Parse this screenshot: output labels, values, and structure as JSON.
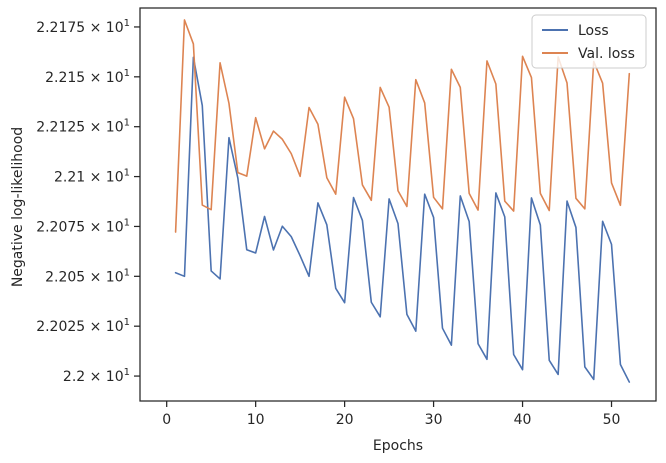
{
  "chart_data": {
    "type": "line",
    "title": "",
    "xlabel": "Epochs",
    "ylabel": "Negative log-likelihood",
    "xlim": [
      -3,
      55
    ],
    "ylim": [
      21.9875,
      22.1845
    ],
    "x_ticks": [
      0,
      10,
      20,
      30,
      40,
      50
    ],
    "y_ticks": [
      {
        "value": 22.0,
        "label": "2.2 × 10^1"
      },
      {
        "value": 22.025,
        "label": "2.2025 × 10^1"
      },
      {
        "value": 22.05,
        "label": "2.205 × 10^1"
      },
      {
        "value": 22.075,
        "label": "2.2075 × 10^1"
      },
      {
        "value": 22.1,
        "label": "2.21 × 10^1"
      },
      {
        "value": 22.125,
        "label": "2.2125 × 10^1"
      },
      {
        "value": 22.15,
        "label": "2.215 × 10^1"
      },
      {
        "value": 22.175,
        "label": "2.2175 × 10^1"
      }
    ],
    "grid": false,
    "legend_position": "top-right",
    "x": [
      1,
      2,
      3,
      4,
      5,
      6,
      7,
      8,
      9,
      10,
      11,
      12,
      13,
      14,
      15,
      16,
      17,
      18,
      19,
      20,
      21,
      22,
      23,
      24,
      25,
      26,
      27,
      28,
      29,
      30,
      31,
      32,
      33,
      34,
      35,
      36,
      37,
      38,
      39,
      40,
      41,
      42,
      43,
      44,
      45,
      46,
      47,
      48,
      49,
      50,
      51,
      52
    ],
    "series": [
      {
        "name": "Loss",
        "color": "#4c72b0",
        "values": [
          22.0518,
          22.05,
          22.1598,
          22.1356,
          22.0527,
          22.0487,
          22.1195,
          22.0992,
          22.0633,
          22.0617,
          22.08,
          22.0632,
          22.0751,
          22.0699,
          22.0603,
          22.05,
          22.0868,
          22.0758,
          22.044,
          22.0368,
          22.0895,
          22.078,
          22.037,
          22.0297,
          22.0888,
          22.0764,
          22.0309,
          22.0225,
          22.0912,
          22.0795,
          22.024,
          22.0155,
          22.0903,
          22.0775,
          22.0162,
          22.0084,
          22.0918,
          22.0798,
          22.0108,
          22.0032,
          22.0893,
          22.0757,
          22.0079,
          22.0008,
          22.0877,
          22.0745,
          22.0046,
          21.9983,
          22.0776,
          22.066,
          22.0058,
          21.997
        ]
      },
      {
        "name": "Val. loss",
        "color": "#dd8452",
        "values": [
          22.0722,
          22.1785,
          22.1665,
          22.0857,
          22.0834,
          22.157,
          22.1367,
          22.102,
          22.1002,
          22.1295,
          22.1139,
          22.1228,
          22.1187,
          22.1115,
          22.1001,
          22.1346,
          22.1262,
          22.0994,
          22.0912,
          22.1398,
          22.129,
          22.0958,
          22.0881,
          22.1447,
          22.1348,
          22.0929,
          22.085,
          22.1486,
          22.1369,
          22.0896,
          22.0838,
          22.1538,
          22.1447,
          22.0916,
          22.0832,
          22.158,
          22.1464,
          22.0877,
          22.0827,
          22.1603,
          22.1496,
          22.0916,
          22.083,
          22.16,
          22.1469,
          22.0891,
          22.0838,
          22.1577,
          22.1468,
          22.0968,
          22.0856,
          22.1516
        ]
      }
    ]
  }
}
